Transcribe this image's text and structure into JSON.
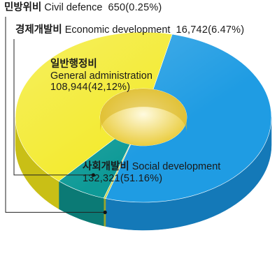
{
  "chart_data": {
    "type": "pie",
    "style": "3d-donut",
    "title": "",
    "unit": "",
    "slices": [
      {
        "key": "social",
        "label_ko": "사회개발비",
        "label_en": "Social development",
        "value": 132321,
        "value_text": "132,321(51.16%)",
        "percent": 51.16,
        "color": "#1f9ce3",
        "side_color": "#1479b8"
      },
      {
        "key": "civil",
        "label_ko": "민방위비",
        "label_en": "Civil defence",
        "value": 650,
        "value_text": "650(0.25%)",
        "percent": 0.25,
        "color": "#c8d24a",
        "side_color": "#9aa52c"
      },
      {
        "key": "economic",
        "label_ko": "경제개발비",
        "label_en": "Economic development",
        "value": 16742,
        "value_text": "16,742(6.47%)",
        "percent": 6.47,
        "color": "#0e9a97",
        "side_color": "#0b7a75"
      },
      {
        "key": "general",
        "label_ko": "일반행정비",
        "label_en": "General administration",
        "value": 108944,
        "value_text": "108,944(42,12%)",
        "percent": 42.12,
        "color": "#f3ea2b",
        "side_color": "#c9bf16"
      }
    ],
    "legend": "callout-labels"
  }
}
